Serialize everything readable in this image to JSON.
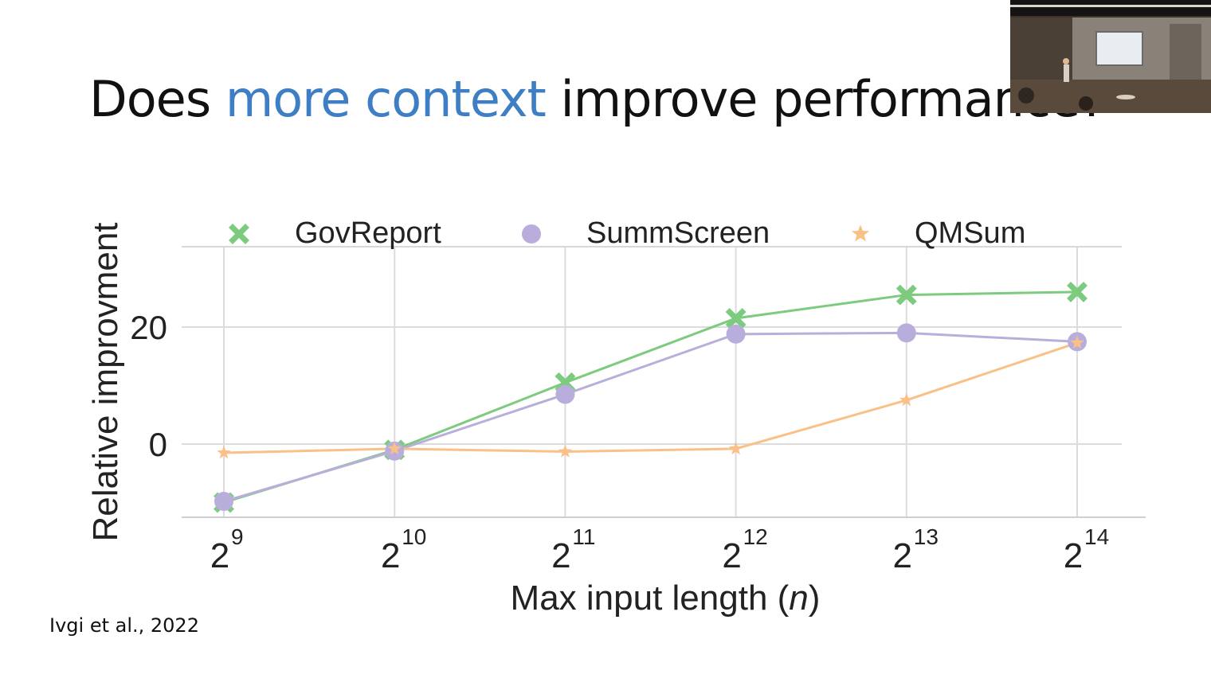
{
  "slide": {
    "title_prefix": "Does ",
    "title_highlight": "more context",
    "title_suffix": " improve performance?",
    "citation": "Ivgi et al., 2022"
  },
  "colors": {
    "highlight": "#3d7ec4",
    "GovReport": "#7ccb7f",
    "SummScreen": "#b9aedb",
    "QMSum": "#f9c088"
  },
  "chart_data": {
    "type": "line",
    "x": [
      9,
      10,
      11,
      12,
      13,
      14
    ],
    "x_tick_base": "2",
    "x_tick_exponents": [
      "9",
      "10",
      "11",
      "12",
      "13",
      "14"
    ],
    "xlabel_prefix": "Max input length (",
    "xlabel_var": "n",
    "xlabel_suffix": ")",
    "ylabel": "Relative improvment",
    "y_ticks": [
      "0",
      "20"
    ],
    "ylim": [
      -12.5,
      34
    ],
    "grid": true,
    "legend_position": "top",
    "series": [
      {
        "name": "GovReport",
        "marker": "x",
        "values": [
          -10,
          -1,
          10.5,
          21.5,
          25.5,
          26
        ]
      },
      {
        "name": "SummScreen",
        "marker": "circle",
        "values": [
          -9.8,
          -1.2,
          8.5,
          18.8,
          19,
          17.5
        ]
      },
      {
        "name": "QMSum",
        "marker": "star",
        "values": [
          -1.5,
          -0.8,
          -1.3,
          -0.8,
          7.5,
          17.3
        ]
      }
    ]
  }
}
